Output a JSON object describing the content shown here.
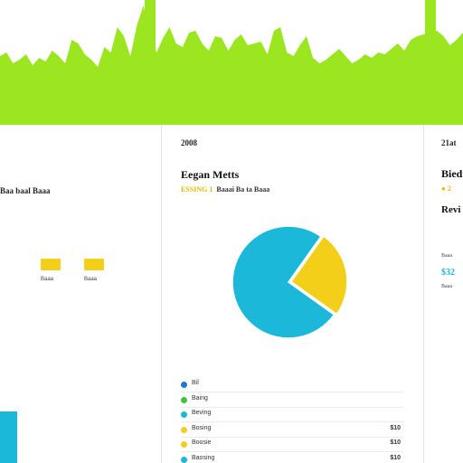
{
  "colors": {
    "banner_green": "#9be620",
    "cyan": "#1bb8da",
    "yellow": "#f4cf1a",
    "blue": "#1f78c8",
    "green": "#3cc43c",
    "divider": "#e4e4e4"
  },
  "left_panel": {
    "label": "Baa baal Baaa",
    "chips": [
      "Baaa",
      "Baaa"
    ]
  },
  "middle_panel": {
    "year": "2008",
    "title": "Eegan Metts",
    "subtitle_accent": "ESSING 1",
    "subtitle_text": "Baaai Ba ta Baaa",
    "legend": [
      {
        "name": "Bil",
        "value": "",
        "color": "#1f78c8"
      },
      {
        "name": "Baing",
        "value": "",
        "color": "#3cc43c"
      },
      {
        "name": "Beving",
        "value": "",
        "color": "#1bb8da"
      },
      {
        "name": "Bosing",
        "value": "$10",
        "color": "#f4cf1a"
      },
      {
        "name": "Boosie",
        "value": "$10",
        "color": "#f4cf1a"
      },
      {
        "name": "Baosing",
        "value": "$10",
        "color": "#1bb8da"
      }
    ]
  },
  "right_panel": {
    "year": "21at",
    "title": "Biedi",
    "subtitle": "● 2",
    "heading": "Revi",
    "small_label": "Baaa",
    "cyan_value": "$32",
    "small_label2": "Baaa"
  },
  "chart_data": {
    "type": "pie",
    "labels": [
      "",
      ""
    ],
    "values": [
      75,
      25
    ],
    "colors": [
      "#1bb8da",
      "#f4cf1a"
    ]
  }
}
